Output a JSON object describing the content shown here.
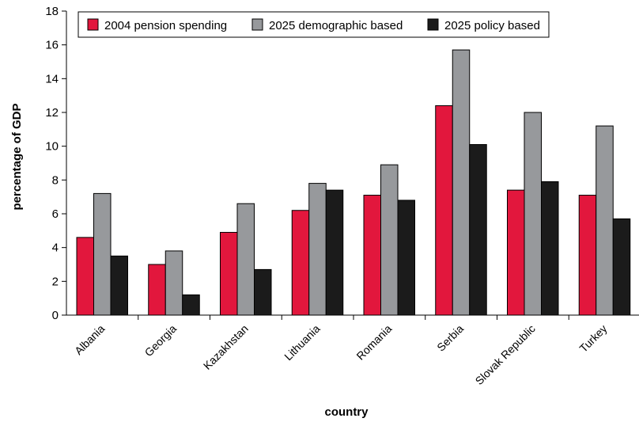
{
  "chart_data": {
    "type": "bar",
    "title": "",
    "xlabel": "country",
    "ylabel": "percentage of GDP",
    "ylim": [
      0,
      18
    ],
    "yticks": [
      0,
      2,
      4,
      6,
      8,
      10,
      12,
      14,
      16,
      18
    ],
    "grid": false,
    "legend_position": "top",
    "categories": [
      "Albania",
      "Georgia",
      "Kazakhstan",
      "Lithuania",
      "Romania",
      "Serbia",
      "Slovak Republic",
      "Turkey"
    ],
    "series": [
      {
        "name": "2004 pension spending",
        "color": "#e2173d",
        "values": [
          4.6,
          3.0,
          4.9,
          6.2,
          7.1,
          12.4,
          7.4,
          7.1
        ]
      },
      {
        "name": "2025 demographic based",
        "color": "#97999c",
        "values": [
          7.2,
          3.8,
          6.6,
          7.8,
          8.9,
          15.7,
          12.0,
          11.2
        ]
      },
      {
        "name": "2025 policy based",
        "color": "#1b1b1b",
        "values": [
          3.5,
          1.2,
          2.7,
          7.4,
          6.8,
          10.1,
          7.9,
          5.7
        ]
      }
    ]
  }
}
